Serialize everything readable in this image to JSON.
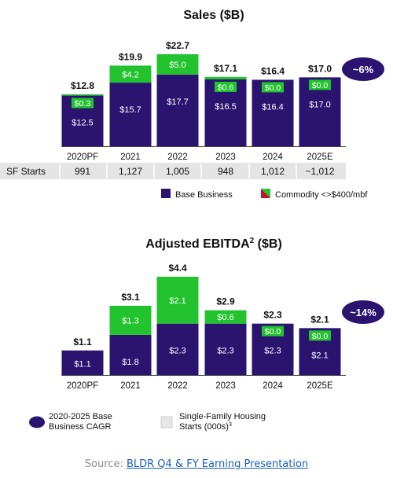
{
  "colors": {
    "base": "#2a1470",
    "commodity": "#22c32e",
    "starts_bg": "#e4e4e4",
    "cagr": "#2a1470"
  },
  "chart_data": [
    {
      "type": "bar",
      "title": "Sales ($B)",
      "categories": [
        "2020PF",
        "2021",
        "2022",
        "2023",
        "2024",
        "2025E"
      ],
      "totals": [
        "$12.8",
        "$19.9",
        "$22.7",
        "$17.1",
        "$16.4",
        "$17.0"
      ],
      "series": [
        {
          "name": "Base Business",
          "values": [
            12.5,
            15.7,
            17.7,
            16.5,
            16.4,
            17.0
          ],
          "labels": [
            "$12.5",
            "$15.7",
            "$17.7",
            "$16.5",
            "$16.4",
            "$17.0"
          ]
        },
        {
          "name": "Commodity <>$400/mbf",
          "values": [
            0.3,
            4.2,
            5.0,
            0.6,
            0.0,
            0.0
          ],
          "labels": [
            "$0.3",
            "$4.2",
            "$5.0",
            "$0.6",
            "$0.0",
            "$0.0"
          ]
        }
      ],
      "ylim": [
        0,
        22.7
      ],
      "cagr": "~6%",
      "row": {
        "label": "SF Starts",
        "values": [
          "991",
          "1,127",
          "1,005",
          "948",
          "1,012",
          "~1,012"
        ]
      },
      "legend": [
        {
          "label": "Base Business",
          "kind": "base"
        },
        {
          "label": "Commodity <>$400/mbf",
          "kind": "commodity"
        }
      ]
    },
    {
      "type": "bar",
      "title": "Adjusted EBITDA",
      "title_sup": "2",
      "title_suffix": " ($B)",
      "categories": [
        "2020PF",
        "2021",
        "2022",
        "2023",
        "2024",
        "2025E"
      ],
      "totals": [
        "$1.1",
        "$3.1",
        "$4.4",
        "$2.9",
        "$2.3",
        "$2.1"
      ],
      "series": [
        {
          "name": "Base Business",
          "values": [
            1.1,
            1.8,
            2.3,
            2.3,
            2.3,
            2.1
          ],
          "labels": [
            "$1.1",
            "$1.8",
            "$2.3",
            "$2.3",
            "$2.3",
            "$2.1"
          ]
        },
        {
          "name": "Commodity",
          "values": [
            0,
            1.3,
            2.1,
            0.6,
            0.0,
            0.0
          ],
          "labels": [
            "",
            "$1.3",
            "$2.1",
            "$0.6",
            "$0.0",
            "$0.0"
          ]
        }
      ],
      "ylim": [
        0,
        4.4
      ],
      "cagr": "~14%",
      "legend": [
        {
          "label_lines": [
            "2020-2025 Base",
            "Business CAGR"
          ],
          "kind": "cagr"
        },
        {
          "label_lines": [
            "Single-Family Housing",
            "Starts (000s)"
          ],
          "sup": "3",
          "kind": "starts"
        }
      ]
    }
  ],
  "source": {
    "prefix": "Source: ",
    "link": "BLDR Q4 & FY Earning Presentation"
  }
}
